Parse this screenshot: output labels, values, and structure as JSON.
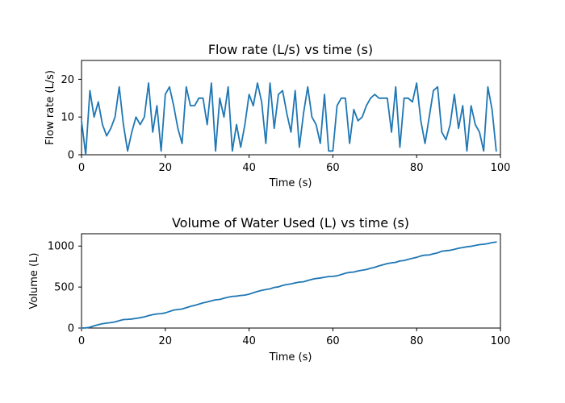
{
  "chart_data": [
    {
      "type": "line",
      "title": "Flow rate (L/s) vs time (s)",
      "xlabel": "Time (s)",
      "ylabel": "Flow rate (L/s)",
      "xlim": [
        0,
        100
      ],
      "ylim": [
        0,
        25
      ],
      "xticks": [
        "0",
        "20",
        "40",
        "60",
        "80",
        "100"
      ],
      "yticks": [
        "0",
        "10",
        "20"
      ],
      "grid": false,
      "color": "#1f77b4",
      "x": [
        0,
        1,
        2,
        3,
        4,
        5,
        6,
        7,
        8,
        9,
        10,
        11,
        12,
        13,
        14,
        15,
        16,
        17,
        18,
        19,
        20,
        21,
        22,
        23,
        24,
        25,
        26,
        27,
        28,
        29,
        30,
        31,
        32,
        33,
        34,
        35,
        36,
        37,
        38,
        39,
        40,
        41,
        42,
        43,
        44,
        45,
        46,
        47,
        48,
        49,
        50,
        51,
        52,
        53,
        54,
        55,
        56,
        57,
        58,
        59,
        60,
        61,
        62,
        63,
        64,
        65,
        66,
        67,
        68,
        69,
        70,
        71,
        72,
        73,
        74,
        75,
        76,
        77,
        78,
        79,
        80,
        81,
        82,
        83,
        84,
        85,
        86,
        87,
        88,
        89,
        90,
        91,
        92,
        93,
        94,
        95,
        96,
        97,
        98,
        99
      ],
      "values": [
        9,
        0,
        17,
        10,
        14,
        8,
        5,
        7,
        10,
        18,
        8,
        1,
        6,
        10,
        8,
        10,
        19,
        6,
        13,
        1,
        16,
        18,
        13,
        7,
        3,
        18,
        13,
        13,
        15,
        15,
        8,
        19,
        1,
        15,
        10,
        18,
        1,
        8,
        2,
        8,
        16,
        13,
        19,
        14,
        3,
        19,
        7,
        16,
        17,
        11,
        6,
        17,
        2,
        11,
        18,
        10,
        8,
        3,
        16,
        1,
        1,
        13,
        15,
        15,
        3,
        12,
        9,
        10,
        13,
        15,
        16,
        15,
        15,
        15,
        6,
        18,
        2,
        15,
        15,
        14,
        19,
        9,
        3,
        10,
        17,
        18,
        6,
        4,
        8,
        16,
        7,
        13,
        1,
        13,
        8,
        6,
        1,
        18,
        12,
        1
      ]
    },
    {
      "type": "line",
      "title": "Volume of Water Used (L) vs time (s)",
      "xlabel": "Time (s)",
      "ylabel": "Volume (L)",
      "xlim": [
        0,
        100
      ],
      "ylim": [
        0,
        1150
      ],
      "xticks": [
        "0",
        "20",
        "40",
        "60",
        "80",
        "100"
      ],
      "yticks": [
        "0",
        "500",
        "1000"
      ],
      "grid": false,
      "color": "#1f77b4",
      "x": [
        0,
        1,
        2,
        3,
        4,
        5,
        6,
        7,
        8,
        9,
        10,
        11,
        12,
        13,
        14,
        15,
        16,
        17,
        18,
        19,
        20,
        21,
        22,
        23,
        24,
        25,
        26,
        27,
        28,
        29,
        30,
        31,
        32,
        33,
        34,
        35,
        36,
        37,
        38,
        39,
        40,
        41,
        42,
        43,
        44,
        45,
        46,
        47,
        48,
        49,
        50,
        51,
        52,
        53,
        54,
        55,
        56,
        57,
        58,
        59,
        60,
        61,
        62,
        63,
        64,
        65,
        66,
        67,
        68,
        69,
        70,
        71,
        72,
        73,
        74,
        75,
        76,
        77,
        78,
        79,
        80,
        81,
        82,
        83,
        84,
        85,
        86,
        87,
        88,
        89,
        90,
        91,
        92,
        93,
        94,
        95,
        96,
        97,
        98,
        99
      ],
      "values": [
        0,
        2,
        10,
        27,
        40,
        53,
        60,
        66,
        75,
        90,
        103,
        106,
        110,
        118,
        126,
        136,
        151,
        163,
        172,
        176,
        185,
        202,
        219,
        226,
        232,
        248,
        264,
        277,
        291,
        307,
        318,
        332,
        344,
        349,
        364,
        376,
        386,
        389,
        397,
        402,
        413,
        430,
        446,
        460,
        469,
        478,
        495,
        502,
        520,
        531,
        538,
        550,
        560,
        564,
        580,
        594,
        604,
        610,
        619,
        628,
        630,
        637,
        652,
        668,
        679,
        683,
        697,
        705,
        714,
        728,
        741,
        758,
        772,
        786,
        795,
        801,
        818,
        823,
        838,
        850,
        862,
        879,
        889,
        892,
        906,
        917,
        936,
        943,
        948,
        959,
        973,
        982,
        991,
        997,
        1008,
        1017,
        1022,
        1030,
        1042,
        1049
      ]
    }
  ]
}
